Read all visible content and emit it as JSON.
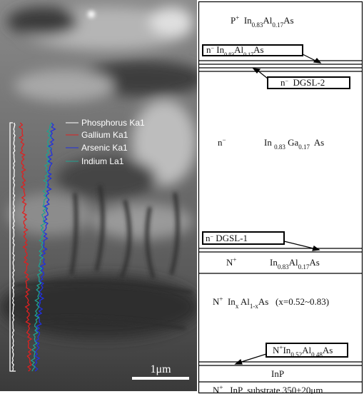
{
  "legend": [
    "Phosphorus Ka1",
    "Gallium Ka1",
    "Arsenic Ka1",
    "Indium La1"
  ],
  "scale_bar": "1μm",
  "labels": [
    {
      "segments": [
        "P",
        {
          "sup": "+"
        },
        "  In",
        {
          "sub": "0.83"
        },
        "Al",
        {
          "sub": "0.17"
        },
        "As"
      ]
    },
    {
      "segments": [
        "n",
        {
          "sup": "−"
        },
        " In",
        {
          "sub": "0.83"
        },
        "Al",
        {
          "sub": "0.17"
        },
        "As"
      ]
    },
    {
      "segments": [
        "n",
        {
          "sup": "−"
        },
        "  DGSL-2"
      ]
    },
    {
      "segments": [
        "n",
        {
          "sup": "−"
        }
      ]
    },
    {
      "segments": [
        "In ",
        {
          "sub": "0.83"
        },
        " Ga",
        {
          "sub": "0.17"
        },
        "  As"
      ]
    },
    {
      "segments": [
        "n",
        {
          "sup": "−"
        },
        " DGSL-1"
      ]
    },
    {
      "segments": [
        "N",
        {
          "sup": "+"
        }
      ]
    },
    {
      "segments": [
        "In",
        {
          "sub": "0.83"
        },
        "Al",
        {
          "sub": "0.17"
        },
        "As"
      ]
    },
    {
      "segments": [
        "N",
        {
          "sup": "+"
        },
        "  In",
        {
          "sub": "x"
        },
        " Al",
        {
          "sub": "1-x"
        },
        "As   (x=0.52~0.83)"
      ]
    },
    {
      "segments": [
        "N",
        {
          "sup": "+"
        },
        "In",
        {
          "sub": "0.52"
        },
        "Al",
        {
          "sub": "0.48"
        },
        "As"
      ]
    },
    {
      "segments": [
        "InP"
      ]
    },
    {
      "segments": [
        "N",
        {
          "sup": "+"
        },
        "   InP  substrate 350±20μm"
      ]
    }
  ]
}
